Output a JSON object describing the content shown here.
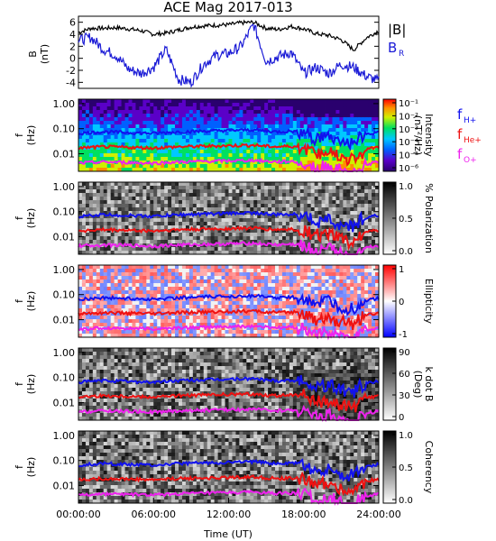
{
  "title": "ACE Mag 2017-013",
  "colors": {
    "B_total": "#000000",
    "B_R": "#1a1ad6",
    "f_H": "#1111ee",
    "f_He": "#ee1111",
    "f_O": "#ee22ee"
  },
  "panel1": {
    "ylabel_main": "B",
    "ylabel_unit": "(nT)",
    "yticks": [
      "6",
      "4",
      "2",
      "0",
      "-2",
      "-4"
    ],
    "legend_B": "|B|",
    "legend_BR": "B",
    "legend_BR_sub": "R"
  },
  "spectro": {
    "ylabel_main": "f",
    "ylabel_unit": "(Hz)",
    "yticks": [
      "1.00",
      "0.10",
      "0.01"
    ]
  },
  "panels": [
    {
      "name": "intensity",
      "cbar_title": "Intensity",
      "cbar_unit": "(nT²/Hz)",
      "cbar_ticks": [
        "10⁻¹",
        "10⁻²",
        "10⁻³",
        "10⁻⁴",
        "10⁻⁵",
        "10⁻⁶"
      ]
    },
    {
      "name": "polarization",
      "cbar_title": "% Polarization",
      "cbar_unit": "",
      "cbar_ticks": [
        "1.0",
        "0.5",
        "0.0"
      ]
    },
    {
      "name": "ellipticity",
      "cbar_title": "Ellipticity",
      "cbar_unit": "",
      "cbar_ticks": [
        "1",
        "0",
        "-1"
      ]
    },
    {
      "name": "kdotb",
      "cbar_title": "k dot B",
      "cbar_unit": "(Deg)",
      "cbar_ticks": [
        "90",
        "60",
        "30",
        "0"
      ]
    },
    {
      "name": "coherency",
      "cbar_title": "Coherency",
      "cbar_unit": "",
      "cbar_ticks": [
        "1.0",
        "0.5",
        "0.0"
      ]
    }
  ],
  "gyro_legend": [
    {
      "label": "f",
      "sub": "H+"
    },
    {
      "label": "f",
      "sub": "He+"
    },
    {
      "label": "f",
      "sub": "O+"
    }
  ],
  "xaxis": {
    "ticks": [
      "00:00:00",
      "06:00:00",
      "12:00:00",
      "18:00:00",
      "24:00:00"
    ],
    "label": "Time (UT)"
  },
  "chart_data": {
    "type": "line",
    "title": "ACE Mag 2017-013",
    "x_range_hours": [
      0,
      24
    ],
    "b_panel": {
      "ylim": [
        -5,
        7
      ],
      "series": [
        {
          "name": "|B|",
          "x": [
            0,
            1,
            2,
            3,
            4,
            5,
            6,
            7,
            8,
            9,
            10,
            11,
            12,
            13,
            14,
            15,
            16,
            17,
            18,
            19,
            20,
            21,
            22,
            23,
            24
          ],
          "values": [
            4.3,
            5.0,
            5.0,
            5.1,
            4.9,
            4.6,
            4.0,
            4.2,
            4.7,
            5.2,
            5.4,
            5.5,
            5.6,
            5.9,
            6.0,
            5.0,
            4.8,
            5.3,
            4.9,
            4.1,
            3.8,
            3.1,
            1.4,
            3.4,
            4.6
          ]
        },
        {
          "name": "B_R",
          "x": [
            0,
            1,
            2,
            3,
            4,
            5,
            6,
            7,
            8,
            9,
            10,
            11,
            12,
            13,
            14,
            15,
            16,
            17,
            18,
            19,
            20,
            21,
            22,
            23,
            24
          ],
          "values": [
            3.0,
            3.5,
            1.5,
            0.5,
            -1.8,
            -2.5,
            -1.5,
            1.5,
            -3.5,
            -4.0,
            -1.0,
            0.5,
            0.8,
            2.0,
            5.6,
            -0.5,
            0.3,
            1.0,
            -2.5,
            -1.5,
            -2.5,
            -1.0,
            -1.5,
            -3.0,
            -3.8
          ]
        }
      ]
    },
    "gyro_frequencies": {
      "ylim_log_hz": [
        0.002,
        1.5
      ],
      "series": [
        {
          "name": "f_H+",
          "x": [
            0,
            2,
            4,
            6,
            8,
            10,
            12,
            14,
            15,
            16,
            17,
            18,
            19,
            20,
            21,
            22,
            23,
            24
          ],
          "values": [
            0.065,
            0.075,
            0.07,
            0.065,
            0.075,
            0.08,
            0.085,
            0.09,
            0.08,
            0.075,
            0.08,
            0.07,
            0.04,
            0.05,
            0.03,
            0.025,
            0.06,
            0.07
          ]
        },
        {
          "name": "f_He+",
          "x": [
            0,
            2,
            4,
            6,
            8,
            10,
            12,
            14,
            15,
            16,
            17,
            18,
            19,
            20,
            21,
            22,
            23,
            24
          ],
          "values": [
            0.017,
            0.019,
            0.018,
            0.017,
            0.019,
            0.02,
            0.021,
            0.022,
            0.02,
            0.019,
            0.02,
            0.018,
            0.01,
            0.012,
            0.008,
            0.006,
            0.015,
            0.018
          ]
        },
        {
          "name": "f_O+",
          "x": [
            0,
            2,
            4,
            6,
            8,
            10,
            12,
            14,
            15,
            16,
            17,
            18,
            19,
            20,
            21,
            22,
            23,
            24
          ],
          "values": [
            0.0042,
            0.0047,
            0.0045,
            0.0042,
            0.0047,
            0.005,
            0.0052,
            0.0055,
            0.005,
            0.0048,
            0.005,
            0.0045,
            0.0025,
            0.003,
            0.002,
            0.0015,
            0.0038,
            0.0045
          ]
        }
      ]
    }
  }
}
